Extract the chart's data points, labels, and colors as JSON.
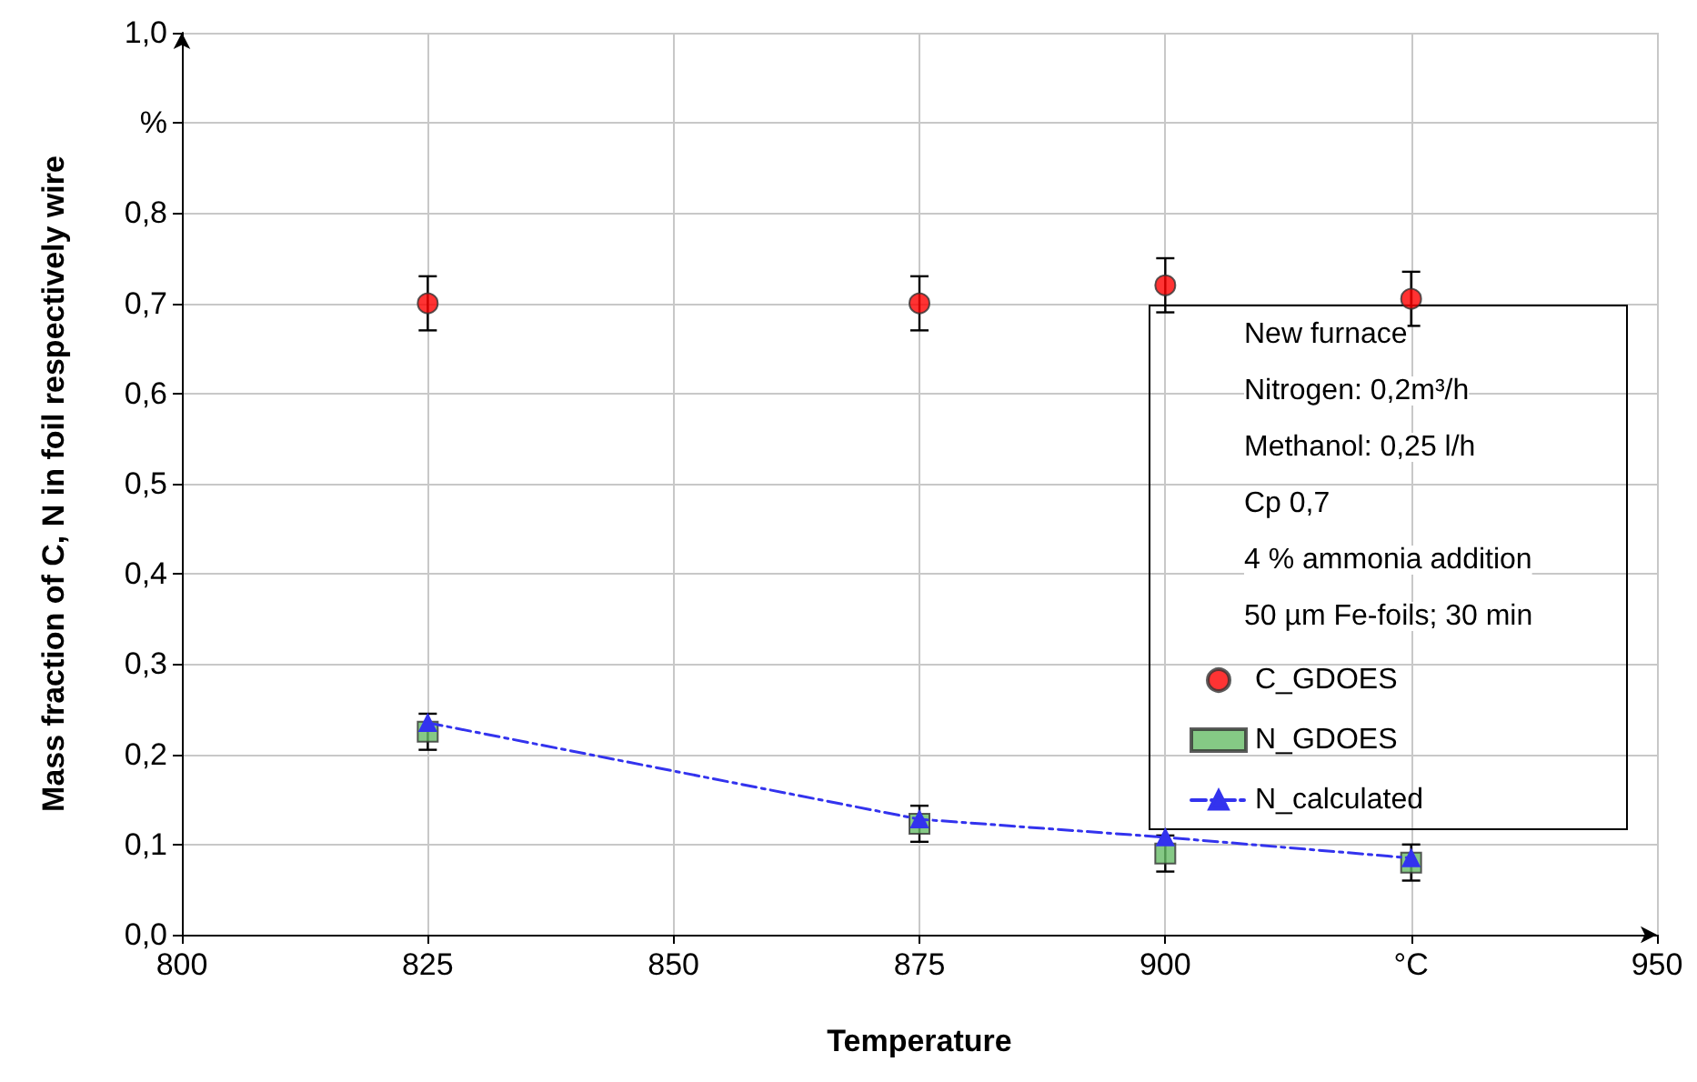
{
  "chart_data": {
    "type": "scatter",
    "xlabel": "Temperature",
    "ylabel": "Mass fraction of C, N in foil respectively wire",
    "x": [
      825,
      875,
      900,
      925
    ],
    "series": [
      {
        "name": "C_GDOES",
        "color": "#ff0000",
        "marker": "circle",
        "values": [
          0.7,
          0.7,
          0.72,
          0.705
        ],
        "errors": [
          0.03,
          0.03,
          0.03,
          0.03
        ]
      },
      {
        "name": "N_GDOES",
        "color": "#66bb66",
        "marker": "square",
        "values": [
          0.225,
          0.123,
          0.09,
          0.08
        ],
        "errors": [
          0.02,
          0.02,
          0.02,
          0.02
        ]
      },
      {
        "name": "N_calculated",
        "type": "line",
        "color": "#3333ee",
        "marker": "triangle",
        "line_style": "dashed",
        "values": [
          0.235,
          0.128,
          0.108,
          0.085
        ]
      }
    ],
    "xlim": [
      800,
      950
    ],
    "xticks": [
      800,
      825,
      850,
      875,
      900,
      {
        "value": 925,
        "label": "°C"
      },
      950
    ],
    "ylim": [
      0,
      1
    ],
    "yticks": [
      {
        "value": 0,
        "label": "0,0"
      },
      {
        "value": 0.1,
        "label": "0,1"
      },
      {
        "value": 0.2,
        "label": "0,2"
      },
      {
        "value": 0.3,
        "label": "0,3"
      },
      {
        "value": 0.4,
        "label": "0,4"
      },
      {
        "value": 0.5,
        "label": "0,5"
      },
      {
        "value": 0.6,
        "label": "0,6"
      },
      {
        "value": 0.7,
        "label": "0,7"
      },
      {
        "value": 0.8,
        "label": "0,8"
      },
      {
        "value": 0.9,
        "label": "%"
      },
      {
        "value": 1,
        "label": "1,0"
      }
    ],
    "grid": true,
    "legend": "right",
    "annotations": [
      "New furnace",
      "Nitrogen: 0,2m³/h",
      "Methanol: 0,25 l/h",
      "Cp 0,7",
      "4 % ammonia addition",
      "50 µm Fe-foils; 30 min"
    ]
  }
}
